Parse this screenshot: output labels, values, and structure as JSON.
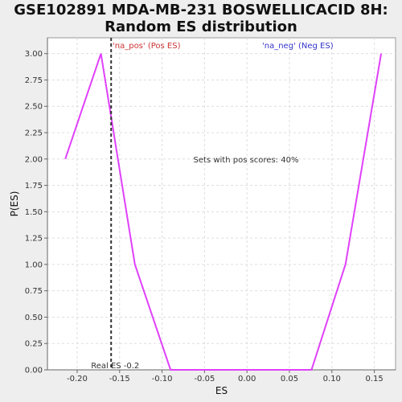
{
  "chart_data": {
    "type": "line",
    "title_line1": "GSE102891 MDA-MB-231 BOSWELLICACID 8H:",
    "title_line2": "Random ES distribution",
    "xlabel": "ES",
    "ylabel": "P(ES)",
    "xlim": [
      -0.235,
      0.175
    ],
    "ylim": [
      0.0,
      3.15
    ],
    "x_ticks": [
      -0.2,
      -0.15,
      -0.1,
      -0.05,
      0.0,
      0.05,
      0.1,
      0.15
    ],
    "x_tick_labels": [
      "-0.20",
      "-0.15",
      "-0.10",
      "-0.05",
      "0.00",
      "0.05",
      "0.10",
      "0.15"
    ],
    "y_ticks": [
      0.0,
      0.25,
      0.5,
      0.75,
      1.0,
      1.25,
      1.5,
      1.75,
      2.0,
      2.25,
      2.5,
      2.75,
      3.0
    ],
    "y_tick_labels": [
      "0.00",
      "0.25",
      "0.50",
      "0.75",
      "1.00",
      "1.25",
      "1.50",
      "1.75",
      "2.00",
      "2.25",
      "2.50",
      "2.75",
      "3.00"
    ],
    "grid": true,
    "series": [
      {
        "color": "#e040fb",
        "x": [
          -0.214,
          -0.172,
          -0.132,
          -0.09,
          -0.05,
          0.0,
          0.035,
          0.076,
          0.116,
          0.158
        ],
        "y": [
          2.0,
          3.0,
          1.0,
          0.0,
          0.0,
          0.0,
          0.0,
          0.0,
          1.0,
          3.0
        ]
      }
    ],
    "real_es": {
      "x": -0.16,
      "label": "Real ES -0.2"
    },
    "annotations": {
      "pos_label": "'na_pos' (Pos ES)",
      "neg_label": "'na_neg' (Neg ES)",
      "center_text": "Sets with pos scores: 40%"
    },
    "colors": {
      "pos": "#cc3333",
      "neg": "#3333cc",
      "line": "#e040fb",
      "real_es": "#333333"
    }
  }
}
